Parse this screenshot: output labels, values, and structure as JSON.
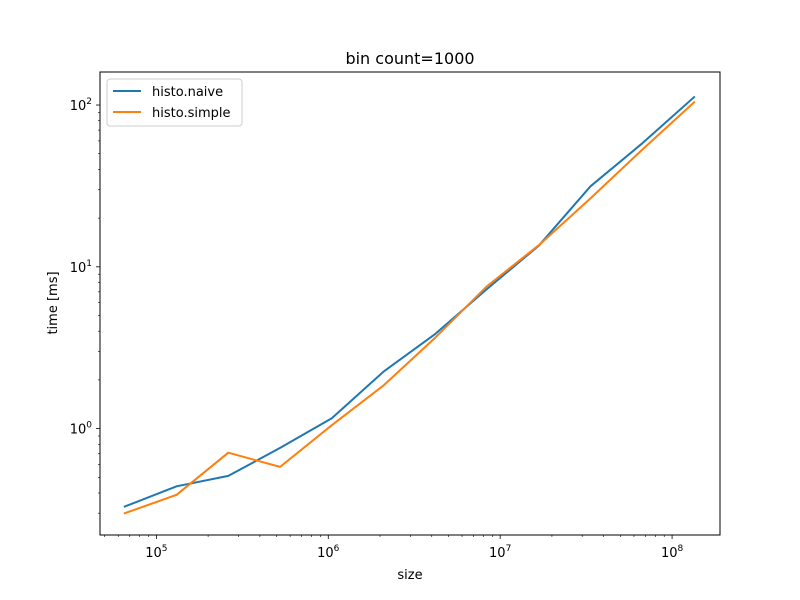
{
  "chart_data": {
    "type": "line",
    "title": "bin count=1000",
    "xlabel": "size",
    "ylabel": "time [ms]",
    "xscale": "log",
    "yscale": "log",
    "xlim": [
      47000,
      190000000
    ],
    "ylim": [
      0.22,
      160
    ],
    "grid": false,
    "legend_position": "top-left",
    "x_ticks": [
      {
        "value": 100000,
        "base": "10",
        "exp": "5"
      },
      {
        "value": 1000000,
        "base": "10",
        "exp": "6"
      },
      {
        "value": 10000000,
        "base": "10",
        "exp": "7"
      },
      {
        "value": 100000000,
        "base": "10",
        "exp": "8"
      }
    ],
    "y_ticks": [
      {
        "value": 1,
        "base": "10",
        "exp": "0"
      },
      {
        "value": 10,
        "base": "10",
        "exp": "1"
      },
      {
        "value": 100,
        "base": "10",
        "exp": "2"
      }
    ],
    "x": [
      65536,
      131072,
      262144,
      524288,
      1048576,
      2097152,
      4194304,
      8388608,
      16777216,
      33554432,
      67108864,
      134217728
    ],
    "series": [
      {
        "name": "histo.naive",
        "color": "#1f77b4",
        "values": [
          0.33,
          0.44,
          0.51,
          0.76,
          1.16,
          2.25,
          3.85,
          7.3,
          13.5,
          31.5,
          58.0,
          112.0
        ]
      },
      {
        "name": "histo.simple",
        "color": "#ff7f0e",
        "values": [
          0.3,
          0.39,
          0.71,
          0.58,
          1.05,
          1.85,
          3.65,
          7.6,
          13.6,
          26.5,
          53.0,
          104.0
        ]
      }
    ]
  }
}
